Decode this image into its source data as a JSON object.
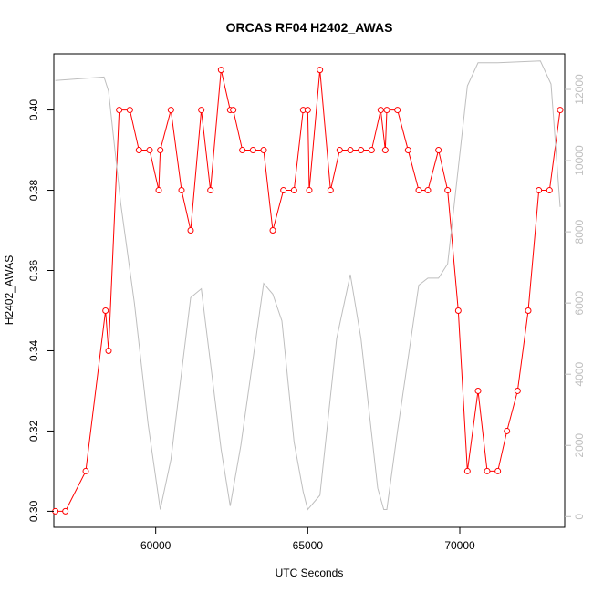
{
  "chart_data": {
    "type": "line",
    "title": "ORCAS RF04 H2402_AWAS",
    "xlabel": "UTC Seconds",
    "ylabel": "H2402_AWAS",
    "xlim": [
      56650,
      73450
    ],
    "ylim": [
      0.296,
      0.414
    ],
    "y2lim": [
      -300,
      13000
    ],
    "x_ticks": [
      60000,
      65000,
      70000
    ],
    "y_ticks": [
      0.3,
      0.32,
      0.34,
      0.36,
      0.38,
      0.4
    ],
    "y2_ticks": [
      0,
      2000,
      4000,
      6000,
      8000,
      10000,
      12000
    ],
    "grid": false,
    "series": [
      {
        "color": "#ff0000",
        "axis": "left",
        "marker": "circle",
        "points": [
          [
            56700,
            0.3
          ],
          [
            57030,
            0.3
          ],
          [
            57700,
            0.31
          ],
          [
            58350,
            0.35
          ],
          [
            58450,
            0.34
          ],
          [
            58800,
            0.4
          ],
          [
            59150,
            0.4
          ],
          [
            59450,
            0.39
          ],
          [
            59800,
            0.39
          ],
          [
            60100,
            0.38
          ],
          [
            60150,
            0.39
          ],
          [
            60500,
            0.4
          ],
          [
            60850,
            0.38
          ],
          [
            61150,
            0.37
          ],
          [
            61500,
            0.4
          ],
          [
            61800,
            0.38
          ],
          [
            62150,
            0.41
          ],
          [
            62450,
            0.4
          ],
          [
            62550,
            0.4
          ],
          [
            62850,
            0.39
          ],
          [
            63200,
            0.39
          ],
          [
            63550,
            0.39
          ],
          [
            63850,
            0.37
          ],
          [
            64200,
            0.38
          ],
          [
            64550,
            0.38
          ],
          [
            64850,
            0.4
          ],
          [
            65000,
            0.4
          ],
          [
            65050,
            0.38
          ],
          [
            65400,
            0.41
          ],
          [
            65750,
            0.38
          ],
          [
            66050,
            0.39
          ],
          [
            66400,
            0.39
          ],
          [
            66750,
            0.39
          ],
          [
            67100,
            0.39
          ],
          [
            67400,
            0.4
          ],
          [
            67550,
            0.39
          ],
          [
            67600,
            0.4
          ],
          [
            67950,
            0.4
          ],
          [
            68300,
            0.39
          ],
          [
            68650,
            0.38
          ],
          [
            68950,
            0.38
          ],
          [
            69300,
            0.39
          ],
          [
            69600,
            0.38
          ],
          [
            69950,
            0.35
          ],
          [
            70250,
            0.31
          ],
          [
            70600,
            0.33
          ],
          [
            70900,
            0.31
          ],
          [
            71250,
            0.31
          ],
          [
            71550,
            0.32
          ],
          [
            71900,
            0.33
          ],
          [
            72250,
            0.35
          ],
          [
            72600,
            0.38
          ],
          [
            72950,
            0.38
          ],
          [
            73300,
            0.4
          ]
        ]
      },
      {
        "color": "#bebebe",
        "axis": "right",
        "marker": "none",
        "points": [
          [
            56700,
            12250
          ],
          [
            58300,
            12350
          ],
          [
            58450,
            11950
          ],
          [
            58850,
            8800
          ],
          [
            59300,
            6000
          ],
          [
            59750,
            2600
          ],
          [
            60150,
            200
          ],
          [
            60500,
            1600
          ],
          [
            61150,
            6150
          ],
          [
            61500,
            6400
          ],
          [
            62150,
            1900
          ],
          [
            62450,
            300
          ],
          [
            62800,
            2000
          ],
          [
            63550,
            6550
          ],
          [
            63850,
            6250
          ],
          [
            64150,
            5500
          ],
          [
            64550,
            2100
          ],
          [
            64850,
            700
          ],
          [
            65000,
            200
          ],
          [
            65400,
            600
          ],
          [
            65950,
            5000
          ],
          [
            66400,
            6800
          ],
          [
            66750,
            5000
          ],
          [
            67300,
            800
          ],
          [
            67500,
            200
          ],
          [
            67600,
            200
          ],
          [
            67950,
            2400
          ],
          [
            68650,
            6500
          ],
          [
            68950,
            6700
          ],
          [
            69300,
            6700
          ],
          [
            69600,
            7100
          ],
          [
            70250,
            12100
          ],
          [
            70600,
            12750
          ],
          [
            71250,
            12750
          ],
          [
            72650,
            12800
          ],
          [
            73000,
            12150
          ],
          [
            73300,
            8700
          ]
        ]
      }
    ]
  }
}
